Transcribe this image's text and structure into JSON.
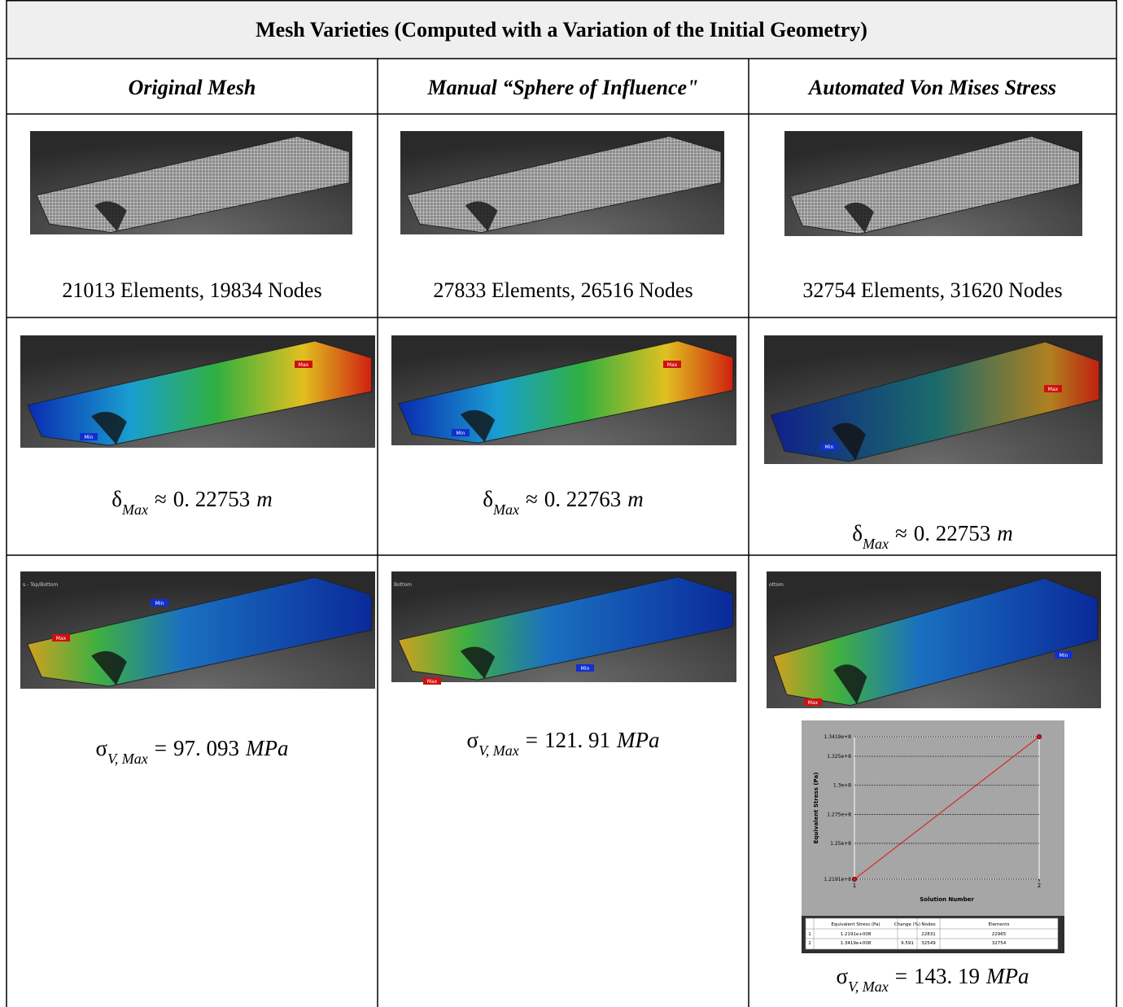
{
  "table": {
    "title": "Mesh Varieties (Computed with a Variation of the Initial Geometry)",
    "headers": [
      "Original Mesh",
      "Manual “Sphere of Influence\"",
      "Automated Von Mises Stress"
    ],
    "mesh_row": [
      {
        "caption": "21013 Elements, 19834 Nodes"
      },
      {
        "caption": "27833 Elements, 26516 Nodes"
      },
      {
        "caption": "32754 Elements, 31620 Nodes"
      }
    ],
    "deformation_row": [
      {
        "tags": [
          "Max",
          "Min"
        ],
        "formula": {
          "symbol": "δ",
          "subscript": "Max",
          "relation": "≈",
          "value": "0. 22753",
          "unit": "m"
        }
      },
      {
        "tags": [
          "Max",
          "Min"
        ],
        "formula": {
          "symbol": "δ",
          "subscript": "Max",
          "relation": "≈",
          "value": "0. 22763",
          "unit": "m"
        }
      },
      {
        "tags": [
          "Max",
          "Min"
        ],
        "formula": {
          "symbol": "δ",
          "subscript": "Max",
          "relation": "≈",
          "value": "0. 22753",
          "unit": "m"
        }
      }
    ],
    "stress_row": [
      {
        "note": "s - Top/Bottom",
        "tags": [
          "Min",
          "Max"
        ],
        "formula": {
          "symbol": "σ",
          "subscript": "V, Max",
          "relation": "=",
          "value": "97. 093",
          "unit": "MPa"
        }
      },
      {
        "note": "Bottom",
        "tags": [
          "Min",
          "Max"
        ],
        "formula": {
          "symbol": "σ",
          "subscript": "V, Max",
          "relation": "=",
          "value": "121. 91",
          "unit": "MPa"
        }
      },
      {
        "note": "ottom",
        "tags": [
          "Min",
          "Max"
        ],
        "formula": {
          "symbol": "σ",
          "subscript": "V, Max",
          "relation": "=",
          "value": "143. 19",
          "unit": "MPa"
        }
      }
    ]
  },
  "chart_data": {
    "type": "line",
    "x_label": "Solution Number",
    "y_label": "Equivalent Stress (Pa)",
    "x": [
      1,
      2
    ],
    "values": [
      121910000,
      134190000
    ],
    "color": "#e01010",
    "xlim": [
      1,
      2
    ],
    "ylim": [
      121910000,
      134190000
    ],
    "xticks": [
      1,
      2
    ],
    "yticks": [
      {
        "value": 121910000,
        "label": "1.2191e+8"
      },
      {
        "value": 125000000,
        "label": "1.25e+8"
      },
      {
        "value": 127500000,
        "label": "1.275e+8"
      },
      {
        "value": 130000000,
        "label": "1.3e+8"
      },
      {
        "value": 132500000,
        "label": "1.325e+8"
      },
      {
        "value": 134190000,
        "label": "1.3419e+8"
      }
    ],
    "grid": true,
    "results_table": {
      "columns": [
        "Equivalent Stress (Pa)",
        "Change (%)",
        "Nodes",
        "Elements"
      ],
      "rows": [
        [
          "1",
          "1.2191e+008",
          null,
          "22831",
          "22965"
        ],
        [
          "2",
          "1.3419e+008",
          "9.591",
          "32549",
          "32754"
        ]
      ]
    }
  }
}
